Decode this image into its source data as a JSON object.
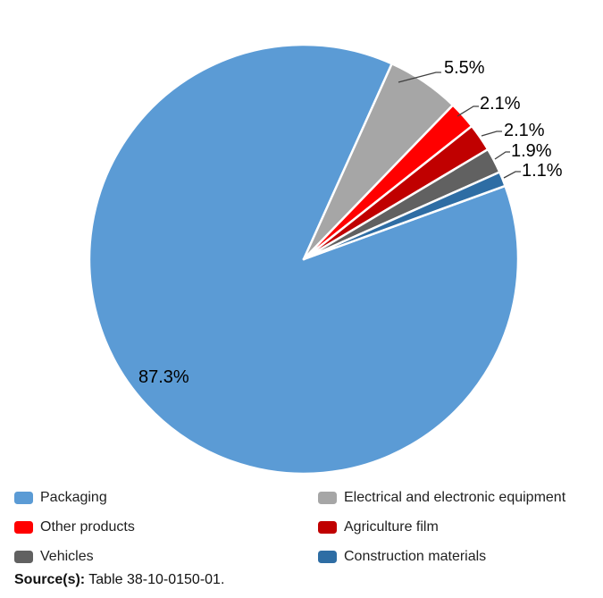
{
  "figure": {
    "background": "#FFFFFF"
  },
  "chart_data": {
    "type": "pie",
    "title": "",
    "categories": [
      "Packaging",
      "Electrical and electronic equipment",
      "Other products",
      "Agriculture film",
      "Vehicles",
      "Construction materials"
    ],
    "values": [
      87.3,
      5.5,
      2.1,
      2.1,
      1.9,
      1.1
    ],
    "slices": [
      {
        "label": "Packaging",
        "value": 87.3,
        "display_label": "87.3%",
        "color": "#5B9BD5"
      },
      {
        "label": "Electrical and electronic equipment",
        "value": 5.5,
        "display_label": "5.5%",
        "color": "#A6A6A6"
      },
      {
        "label": "Other products",
        "value": 2.1,
        "display_label": "2.1%",
        "color": "#FF0000"
      },
      {
        "label": "Agriculture film",
        "value": 2.1,
        "display_label": "2.1%",
        "color": "#C00000"
      },
      {
        "label": "Vehicles",
        "value": 1.9,
        "display_label": "1.9%",
        "color": "#616161"
      },
      {
        "label": "Construction materials",
        "value": 1.1,
        "display_label": "1.1%",
        "color": "#2E6DA4"
      }
    ],
    "start_angle_deg": 70,
    "direction": "clockwise",
    "slice_border_color": "#FFFFFF",
    "leader_line_color": "#404040",
    "label_color": "#000000",
    "data_label_font_px": 20,
    "legend_position": "bottom",
    "legend_columns": 2,
    "grid": "off"
  },
  "legend": {
    "items": [
      "Packaging",
      "Electrical and electronic equipment",
      "Other products",
      "Agriculture film",
      "Vehicles",
      "Construction materials"
    ]
  },
  "source": {
    "prefix": "Source(s):",
    "text": "Table 38-10-0150-01."
  }
}
